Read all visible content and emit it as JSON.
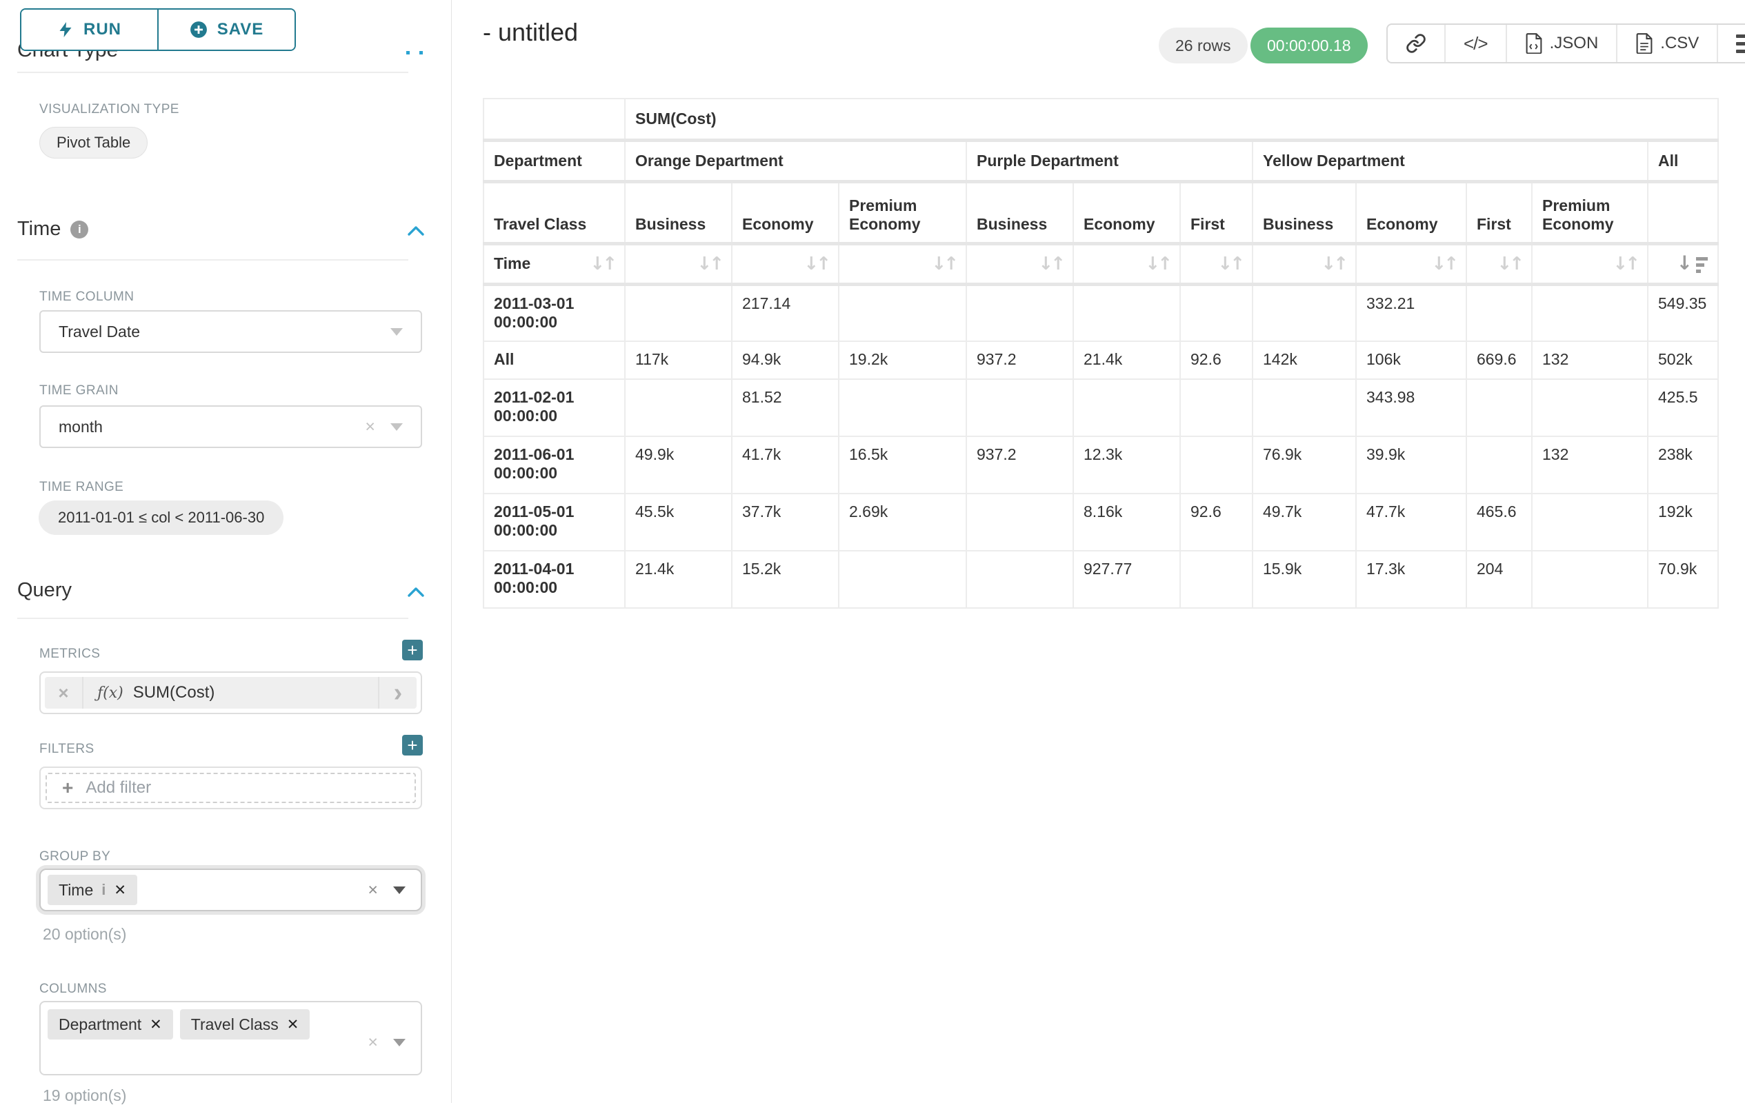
{
  "colors": {
    "accent_teal": "#227a8f",
    "plus_button_teal": "#3d7e8f",
    "section_chevron_blue": "#2aa3d2",
    "timer_green": "#67bd83"
  },
  "sidebar": {
    "run_label": "RUN",
    "save_label": "SAVE",
    "chart_type_heading": "Chart Type",
    "visualization_type_label": "VISUALIZATION TYPE",
    "visualization_type_value": "Pivot Table",
    "time_section": {
      "title": "Time",
      "time_column_label": "TIME COLUMN",
      "time_column_value": "Travel Date",
      "time_grain_label": "TIME GRAIN",
      "time_grain_value": "month",
      "time_range_label": "TIME RANGE",
      "time_range_value": "2011-01-01 ≤ col < 2011-06-30"
    },
    "query_section": {
      "title": "Query",
      "metrics_label": "METRICS",
      "metric_fx": "ƒ(x)",
      "metric_value": "SUM(Cost)",
      "filters_label": "FILTERS",
      "add_filter_label": "Add filter",
      "group_by_label": "GROUP BY",
      "group_by_chip": "Time",
      "group_by_options": "20 option(s)",
      "columns_label": "COLUMNS",
      "columns_chip_1": "Department",
      "columns_chip_2": "Travel Class",
      "columns_options": "19 option(s)"
    }
  },
  "main": {
    "title": "- untitled",
    "rows_badge": "26 rows",
    "timer_badge": "00:00:00.18",
    "export_json_label": ".JSON",
    "export_csv_label": ".CSV",
    "code_icon_label": "</>"
  },
  "chart_data": {
    "type": "table",
    "metric": "SUM(Cost)",
    "row_dimension": "Time",
    "column_dimensions": [
      "Department",
      "Travel Class"
    ],
    "corner_labels": {
      "department": "Department",
      "travel_class": "Travel Class",
      "time": "Time"
    },
    "all_column_label": "All",
    "column_groups": [
      {
        "name": "Orange Department",
        "classes": [
          "Business",
          "Economy",
          "Premium Economy"
        ]
      },
      {
        "name": "Purple Department",
        "classes": [
          "Business",
          "Economy",
          "First"
        ]
      },
      {
        "name": "Yellow Department",
        "classes": [
          "Business",
          "Economy",
          "First",
          "Premium Economy"
        ]
      }
    ],
    "rows": [
      {
        "label": "2011-03-01 00:00:00",
        "values": [
          "",
          "217.14",
          "",
          "",
          "",
          "",
          "",
          "332.21",
          "",
          "",
          "549.35"
        ]
      },
      {
        "label": "All",
        "values": [
          "117k",
          "94.9k",
          "19.2k",
          "937.2",
          "21.4k",
          "92.6",
          "142k",
          "106k",
          "669.6",
          "132",
          "502k"
        ]
      },
      {
        "label": "2011-02-01 00:00:00",
        "values": [
          "",
          "81.52",
          "",
          "",
          "",
          "",
          "",
          "343.98",
          "",
          "",
          "425.5"
        ]
      },
      {
        "label": "2011-06-01 00:00:00",
        "values": [
          "49.9k",
          "41.7k",
          "16.5k",
          "937.2",
          "12.3k",
          "",
          "76.9k",
          "39.9k",
          "",
          "132",
          "238k"
        ]
      },
      {
        "label": "2011-05-01 00:00:00",
        "values": [
          "45.5k",
          "37.7k",
          "2.69k",
          "",
          "8.16k",
          "92.6",
          "49.7k",
          "47.7k",
          "465.6",
          "",
          "192k"
        ]
      },
      {
        "label": "2011-04-01 00:00:00",
        "values": [
          "21.4k",
          "15.2k",
          "",
          "",
          "927.77",
          "",
          "15.9k",
          "17.3k",
          "204",
          "",
          "70.9k"
        ]
      }
    ]
  }
}
